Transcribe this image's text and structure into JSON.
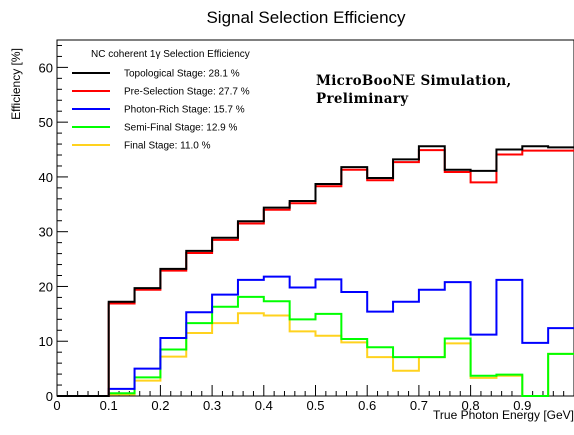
{
  "chart_data": {
    "type": "line",
    "style": "step-histogram",
    "title": "Signal Selection Efficiency",
    "xlabel": "True Photon Energy [GeV]",
    "ylabel": "Efficiency [%]",
    "xlim": [
      0,
      1.0
    ],
    "ylim": [
      0,
      65
    ],
    "x_ticks": [
      "0",
      "0.1",
      "0.2",
      "0.3",
      "0.4",
      "0.5",
      "0.6",
      "0.7",
      "0.8",
      "0.9"
    ],
    "y_ticks": [
      "0",
      "10",
      "20",
      "30",
      "40",
      "50",
      "60"
    ],
    "grid": false,
    "legend_title": "NC coherent 1γ Selection Efficiency",
    "legend_position": "top-left",
    "annotation": [
      "MicroBooNE Simulation,",
      "Preliminary"
    ],
    "bin_edges": [
      0,
      0.05,
      0.1,
      0.15,
      0.2,
      0.25,
      0.3,
      0.35,
      0.4,
      0.45,
      0.5,
      0.55,
      0.6,
      0.65,
      0.7,
      0.75,
      0.8,
      0.85,
      0.9,
      0.95,
      1.0
    ],
    "series": [
      {
        "name": "Topological Stage: 28.1 %",
        "color": "#000000",
        "values": [
          0,
          0,
          17.2,
          19.7,
          23.2,
          26.5,
          28.9,
          31.9,
          34.4,
          35.6,
          38.7,
          41.8,
          39.8,
          43.2,
          45.6,
          41.3,
          41.1,
          45.0,
          45.6,
          45.4
        ]
      },
      {
        "name": "Pre-Selection Stage: 27.7 %",
        "color": "#ff0000",
        "values": [
          0,
          0,
          16.9,
          19.4,
          22.9,
          26.1,
          28.5,
          31.5,
          34.0,
          35.2,
          38.3,
          41.3,
          39.4,
          42.7,
          44.9,
          40.9,
          39.0,
          44.1,
          44.8,
          44.8
        ]
      },
      {
        "name": "Photon-Rich Stage: 15.7 %",
        "color": "#0000ff",
        "values": [
          0,
          0,
          1.3,
          5.0,
          10.6,
          15.3,
          18.5,
          21.2,
          21.8,
          19.8,
          21.3,
          19.0,
          15.4,
          17.2,
          19.4,
          20.8,
          11.2,
          21.2,
          9.7,
          12.4
        ]
      },
      {
        "name": "Semi-Final Stage: 12.9 %",
        "color": "#00ff00",
        "values": [
          0,
          0,
          0.5,
          3.4,
          8.5,
          13.3,
          16.3,
          18.1,
          17.3,
          14.0,
          15.0,
          10.4,
          8.9,
          7.1,
          7.1,
          10.5,
          3.7,
          3.9,
          0,
          7.7
        ]
      },
      {
        "name": "Final Stage: 11.0 %",
        "color": "#ffd21e",
        "values": [
          0,
          0,
          0.3,
          2.8,
          7.2,
          11.5,
          13.3,
          15.1,
          14.7,
          11.8,
          11.0,
          9.8,
          7.1,
          4.6,
          7.1,
          9.6,
          3.3,
          3.7,
          0,
          7.7
        ]
      }
    ]
  }
}
